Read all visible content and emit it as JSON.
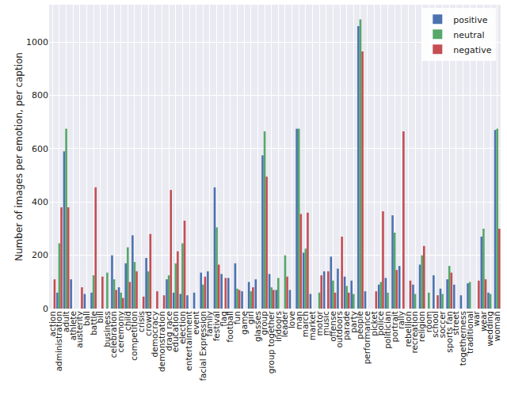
{
  "chart_data": {
    "type": "bar",
    "y_label": "Number of images per emotion, per caption",
    "categories": [
      "action",
      "administration",
      "adult",
      "athlete",
      "austerity",
      "ball",
      "battle",
      "bill",
      "business",
      "celebration",
      "ceremony",
      "child",
      "competition",
      "crisis",
      "crowd",
      "democracy",
      "demonstration",
      "drag race",
      "education",
      "election",
      "entertainment",
      "event",
      "facial Expression",
      "family",
      "festival",
      "flag",
      "football",
      "fun",
      "game",
      "girl",
      "glasses",
      "group",
      "group together",
      "indoors",
      "leader",
      "love",
      "man",
      "march",
      "market",
      "motor",
      "music",
      "offense",
      "outdoors",
      "parade",
      "party",
      "people",
      "performance",
      "picket",
      "police",
      "politician",
      "portrait",
      "rally",
      "rebellion",
      "recreation",
      "religion",
      "room",
      "school",
      "soccer",
      "sports fan",
      "street",
      "togetherness",
      "traditional",
      "war",
      "wear",
      "wedding",
      "woman"
    ],
    "series": [
      {
        "name": "positive",
        "color": "#4c72b0",
        "values": [
          0,
          60,
          590,
          110,
          0,
          55,
          60,
          0,
          0,
          200,
          80,
          170,
          275,
          0,
          190,
          0,
          0,
          110,
          60,
          55,
          50,
          60,
          135,
          140,
          455,
          130,
          115,
          170,
          65,
          100,
          110,
          575,
          130,
          70,
          0,
          70,
          675,
          210,
          55,
          0,
          140,
          195,
          150,
          120,
          105,
          1060,
          65,
          0,
          90,
          115,
          350,
          160,
          0,
          90,
          165,
          0,
          125,
          75,
          110,
          90,
          50,
          95,
          0,
          270,
          60,
          670
        ]
      },
      {
        "name": "neutral",
        "color": "#55a868",
        "values": [
          0,
          245,
          675,
          0,
          0,
          0,
          125,
          0,
          135,
          110,
          60,
          230,
          175,
          0,
          140,
          0,
          0,
          125,
          170,
          245,
          0,
          0,
          90,
          0,
          305,
          0,
          0,
          75,
          0,
          65,
          0,
          665,
          80,
          115,
          200,
          0,
          675,
          225,
          0,
          60,
          0,
          105,
          0,
          85,
          55,
          1085,
          0,
          0,
          100,
          60,
          285,
          0,
          0,
          55,
          200,
          60,
          0,
          55,
          160,
          0,
          0,
          100,
          0,
          300,
          55,
          675
        ]
      },
      {
        "name": "negative",
        "color": "#c44e52",
        "values": [
          110,
          380,
          380,
          0,
          80,
          0,
          455,
          120,
          0,
          70,
          40,
          100,
          140,
          45,
          280,
          65,
          50,
          445,
          215,
          330,
          0,
          0,
          120,
          0,
          165,
          115,
          0,
          70,
          0,
          80,
          0,
          495,
          70,
          0,
          120,
          0,
          355,
          360,
          0,
          125,
          140,
          60,
          270,
          60,
          0,
          965,
          0,
          65,
          365,
          0,
          145,
          665,
          105,
          0,
          235,
          0,
          50,
          0,
          135,
          0,
          0,
          0,
          105,
          110,
          0,
          300
        ]
      }
    ],
    "ylim": [
      0,
      1140
    ],
    "yticks": [
      0,
      200,
      400,
      600,
      800,
      1000
    ],
    "grid": true,
    "legend": "upper right"
  }
}
